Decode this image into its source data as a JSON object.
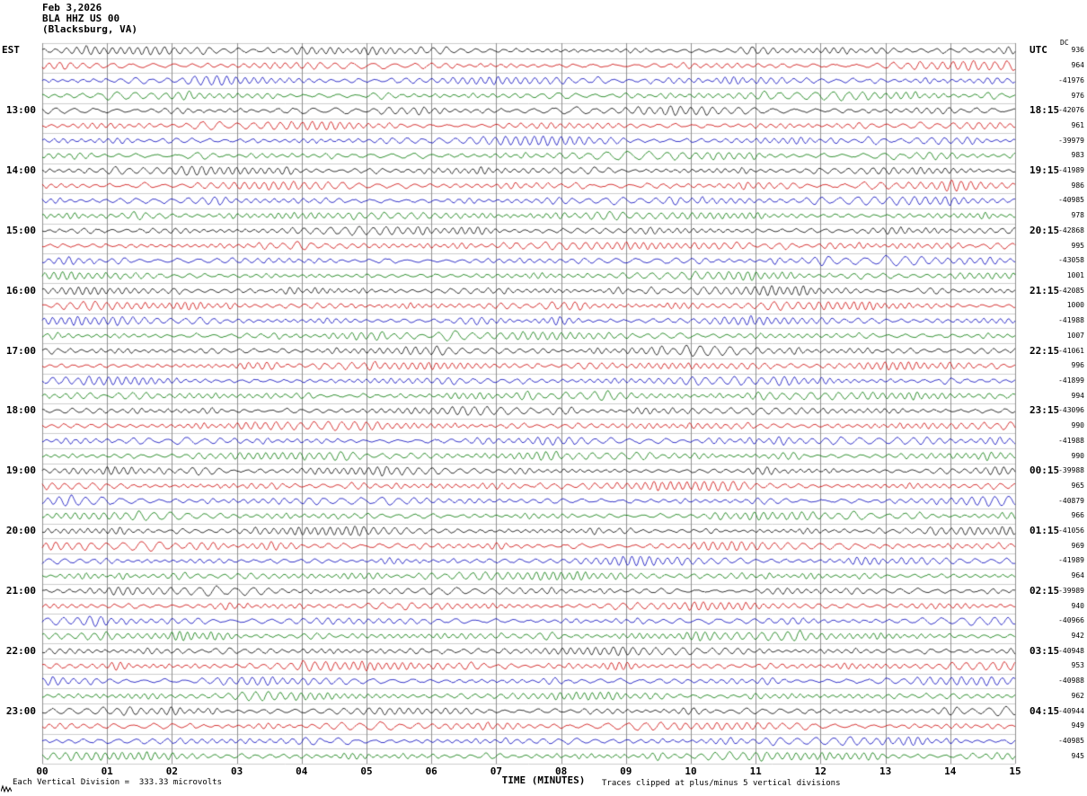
{
  "header": {
    "date": "Feb 3,2026",
    "station": "BLA HHZ US 00",
    "location": "(Blacksburg, VA)"
  },
  "axes": {
    "left_timezone_label": "EST",
    "right_timezone_label": "UTC",
    "dc_column_label": "DC",
    "x_axis_title": "TIME (MINUTES)",
    "x_tick_labels": [
      "00",
      "01",
      "02",
      "03",
      "04",
      "05",
      "06",
      "07",
      "08",
      "09",
      "10",
      "11",
      "12",
      "13",
      "14",
      "15"
    ]
  },
  "footer": {
    "left_note": "Each Vertical Division =  333.33 microvolts",
    "right_note": "Traces clipped at plus/minus 5 vertical divisions"
  },
  "chart_data": {
    "type": "line",
    "subtype": "helicorder-seismogram",
    "title": "BLA HHZ US 00 (Blacksburg, VA) Feb 3,2026",
    "x_axis": {
      "label": "TIME (MINUTES)",
      "min": 0,
      "max": 15,
      "tick_step": 1
    },
    "rows": 48,
    "minutes_per_row": 15,
    "trace_color_cycle": [
      "#000000",
      "#cc0000",
      "#0000bb",
      "#007700"
    ],
    "hour_label_start_row": 4,
    "hour_label_row_step": 4,
    "left_hour_labels_est": [
      "13:00",
      "14:00",
      "15:00",
      "16:00",
      "17:00",
      "18:00",
      "19:00",
      "20:00",
      "21:00",
      "22:00",
      "23:00"
    ],
    "right_hour_labels_utc": [
      "18:15",
      "19:15",
      "20:15",
      "21:15",
      "22:15",
      "23:15",
      "00:15",
      "01:15",
      "02:15",
      "03:15",
      "04:15"
    ],
    "dc_offsets_per_row": [
      936,
      964,
      -41976,
      976,
      -42076,
      961,
      -39979,
      983,
      -41989,
      986,
      -40985,
      978,
      -42868,
      995,
      -43058,
      1001,
      -42085,
      1000,
      -41988,
      1007,
      -41061,
      996,
      -41899,
      994,
      -43096,
      990,
      -41988,
      990,
      -39988,
      965,
      -40879,
      966,
      -41056,
      969,
      -41989,
      964,
      -39989,
      940,
      -40966,
      942,
      -40948,
      953,
      -40988,
      962,
      -40944,
      949,
      -40985,
      945
    ],
    "microvolts_per_vertical_division": 333.33,
    "clip_divisions": 5,
    "waveform_description": "continuous low-amplitude microseism background noise on all 48 quarter-hour traces; no large discrete events"
  },
  "style": {
    "background": "#ffffff",
    "grid_vertical_color": "#909090",
    "grid_horizontal_color": "#cccccc",
    "text_color": "#000000"
  }
}
